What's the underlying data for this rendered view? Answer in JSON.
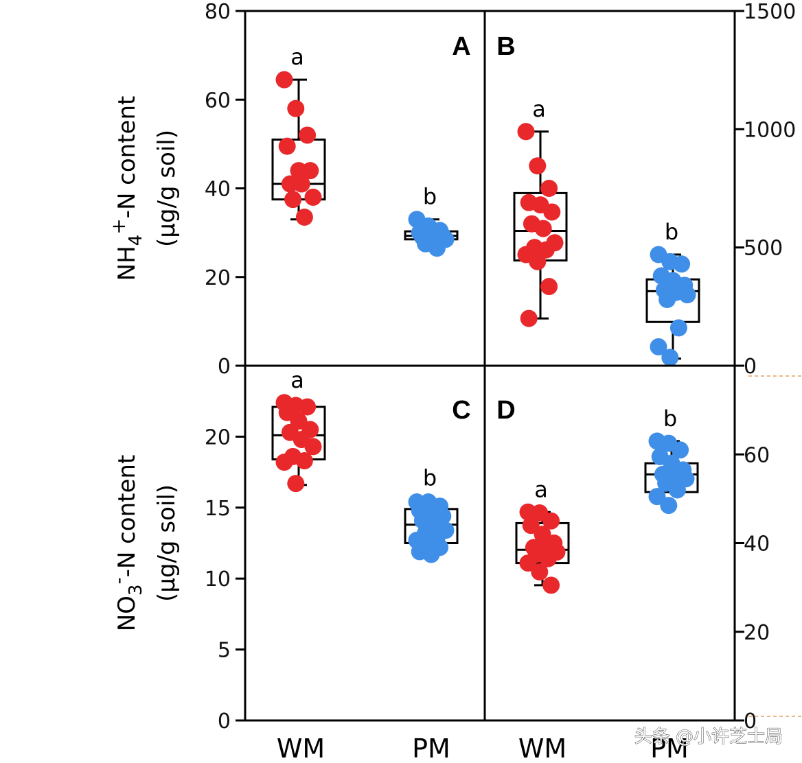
{
  "chart_data": [
    {
      "panel": "A",
      "type": "box",
      "y_axis_side": "left",
      "ylim": [
        0,
        80
      ],
      "yticks": [
        0,
        20,
        40,
        60,
        80
      ],
      "ylabel_line1": "NH",
      "ylabel_sub": "4",
      "ylabel_sup": "+",
      "ylabel_rest": "-N content",
      "ylabel_line2": "(µg/g soil)",
      "groups": [
        {
          "name": "WM",
          "color": "#e8282b",
          "sig": "a",
          "box": {
            "min": 33,
            "q1": 37.5,
            "median": 41,
            "q3": 51,
            "max": 64.5
          },
          "points": [
            64.5,
            58,
            52,
            49.5,
            44,
            44,
            41,
            41,
            38,
            37.5,
            33.5
          ]
        },
        {
          "name": "PM",
          "color": "#3f8ee8",
          "sig": "b",
          "box": {
            "min": 26.5,
            "q1": 28.5,
            "median": 29.3,
            "q3": 30.3,
            "max": 33
          },
          "points": [
            33,
            31.5,
            30.5,
            30,
            29.5,
            29.3,
            29,
            28.8,
            28.5,
            27.5,
            26.5
          ]
        }
      ]
    },
    {
      "panel": "B",
      "type": "box",
      "y_axis_side": "right",
      "ylim": [
        0,
        1500
      ],
      "yticks": [
        0,
        500,
        1000,
        1500
      ],
      "groups": [
        {
          "name": "WM",
          "color": "#e8282b",
          "sig": "a",
          "box": {
            "min": 200,
            "q1": 445,
            "median": 570,
            "q3": 730,
            "max": 990
          },
          "points": [
            990,
            845,
            750,
            690,
            680,
            650,
            600,
            580,
            520,
            500,
            490,
            470,
            440,
            335,
            200
          ]
        },
        {
          "name": "PM",
          "color": "#3f8ee8",
          "sig": "b",
          "box": {
            "min": 30,
            "q1": 185,
            "median": 315,
            "q3": 365,
            "max": 470
          },
          "points": [
            470,
            440,
            430,
            380,
            360,
            340,
            320,
            310,
            300,
            280,
            160,
            80,
            35
          ]
        }
      ]
    },
    {
      "panel": "C",
      "type": "box",
      "y_axis_side": "left",
      "ylim": [
        0,
        25
      ],
      "yticks": [
        0,
        5,
        10,
        15,
        20
      ],
      "ylabel_line1": "NO",
      "ylabel_sub": "3",
      "ylabel_sup": "-",
      "ylabel_rest": "-N content",
      "ylabel_line2": "(µg/g soil)",
      "groups": [
        {
          "name": "WM",
          "color": "#e8282b",
          "sig": "a",
          "box": {
            "min": 16.6,
            "q1": 18.4,
            "median": 20.1,
            "q3": 22.1,
            "max": 22.1
          },
          "points": [
            22.4,
            22.2,
            22.1,
            21.7,
            21.1,
            20.5,
            20.3,
            19.8,
            19.3,
            18.6,
            18.3,
            18.2,
            16.7
          ]
        },
        {
          "name": "PM",
          "color": "#3f8ee8",
          "sig": "b",
          "box": {
            "min": 11.6,
            "q1": 12.5,
            "median": 13.8,
            "q3": 14.9,
            "max": 15.5
          },
          "points": [
            15.4,
            15.4,
            15.1,
            14.8,
            14.5,
            14.4,
            14.1,
            13.7,
            13.4,
            13.2,
            12.9,
            12.7,
            12.4,
            12.2,
            11.9,
            11.7
          ]
        }
      ]
    },
    {
      "panel": "D",
      "type": "box",
      "y_axis_side": "right",
      "ylim": [
        0,
        80
      ],
      "yticks": [
        0,
        20,
        40,
        60
      ],
      "groups": [
        {
          "name": "WM",
          "color": "#e8282b",
          "sig": "a",
          "box": {
            "min": 30.5,
            "q1": 35.5,
            "median": 38.5,
            "q3": 44.5,
            "max": 47
          },
          "points": [
            47,
            46.8,
            45,
            44,
            42,
            40,
            39,
            38.5,
            38,
            37.5,
            36.5,
            35.5,
            33.5,
            30.5
          ]
        },
        {
          "name": "PM",
          "color": "#3f8ee8",
          "sig": "b",
          "box": {
            "min": 51.5,
            "q1": 51.5,
            "median": 55.5,
            "q3": 58,
            "max": 63
          },
          "points": [
            63,
            62.5,
            61,
            59.5,
            58,
            56.5,
            55.5,
            55,
            54.5,
            53.5,
            52,
            50.5,
            48.5
          ]
        }
      ]
    }
  ],
  "x_categories": [
    "WM",
    "PM",
    "WM",
    "PM"
  ],
  "watermark": "头条 @小许芝士局"
}
